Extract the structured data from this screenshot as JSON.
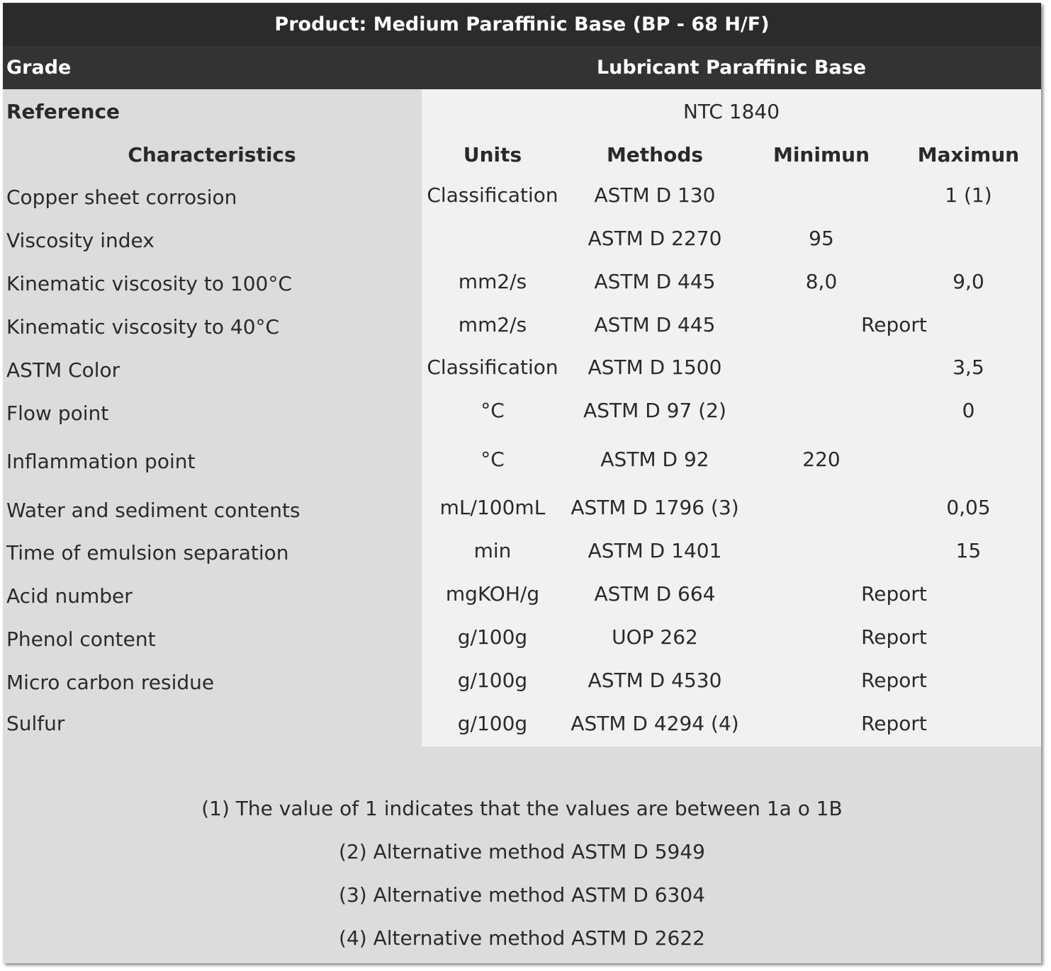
{
  "title": "Product: Medium Paraffinic Base (BP - 68 H/F)",
  "grade": {
    "label": "Grade",
    "value": "Lubricant Paraffinic Base"
  },
  "reference": {
    "label": "Reference",
    "value": "NTC 1840"
  },
  "headers": {
    "characteristics": "Characteristics",
    "units": "Units",
    "methods": "Methods",
    "minimum": "Minimun",
    "maximum": "Maximun"
  },
  "rows": [
    {
      "characteristic": "Copper sheet corrosion",
      "units": "Classification",
      "method": "ASTM D 130",
      "min": "",
      "max": "1 (1)",
      "span": ""
    },
    {
      "characteristic": "Viscosity index",
      "units": "",
      "method": "ASTM D 2270",
      "min": "95",
      "max": "",
      "span": ""
    },
    {
      "characteristic": "Kinematic viscosity to 100°C",
      "units": "mm2/s",
      "method": "ASTM D 445",
      "min": "8,0",
      "max": "9,0",
      "span": ""
    },
    {
      "characteristic": "Kinematic viscosity to 40°C",
      "units": "mm2/s",
      "method": "ASTM D 445",
      "min": "",
      "max": "",
      "span": "Report"
    },
    {
      "characteristic": "ASTM Color",
      "units": "Classification",
      "method": "ASTM D 1500",
      "min": "",
      "max": "3,5",
      "span": ""
    },
    {
      "characteristic": "Flow point",
      "units": "°C",
      "method": "ASTM D 97 (2)",
      "min": "",
      "max": "0",
      "span": ""
    },
    {
      "characteristic": "Inflammation point",
      "units": "°C",
      "method": "ASTM D 92",
      "min": "220",
      "max": "",
      "span": ""
    },
    {
      "characteristic": "Water and sediment contents",
      "units": "mL/100mL",
      "method": "ASTM D 1796 (3)",
      "min": "",
      "max": "0,05",
      "span": ""
    },
    {
      "characteristic": "Time of emulsion separation",
      "units": "min",
      "method": "ASTM D 1401",
      "min": "",
      "max": "15",
      "span": ""
    },
    {
      "characteristic": "Acid number",
      "units": "mgKOH/g",
      "method": "ASTM D 664",
      "min": "",
      "max": "",
      "span": "Report"
    },
    {
      "characteristic": "Phenol content",
      "units": "g/100g",
      "method": "UOP 262",
      "min": "",
      "max": "",
      "span": "Report"
    },
    {
      "characteristic": "Micro carbon residue",
      "units": "g/100g",
      "method": "ASTM D 4530",
      "min": "",
      "max": "",
      "span": "Report"
    },
    {
      "characteristic": "Sulfur",
      "units": "g/100g",
      "method": "ASTM D 4294 (4)",
      "min": "",
      "max": "",
      "span": "Report"
    }
  ],
  "notes": [
    "(1) The value of 1 indicates that the values are between 1a o 1B",
    "(2) Alternative method ASTM D 5949",
    "(3) Alternative method ASTM D 6304",
    "(4) Alternative method ASTM D 2622"
  ]
}
